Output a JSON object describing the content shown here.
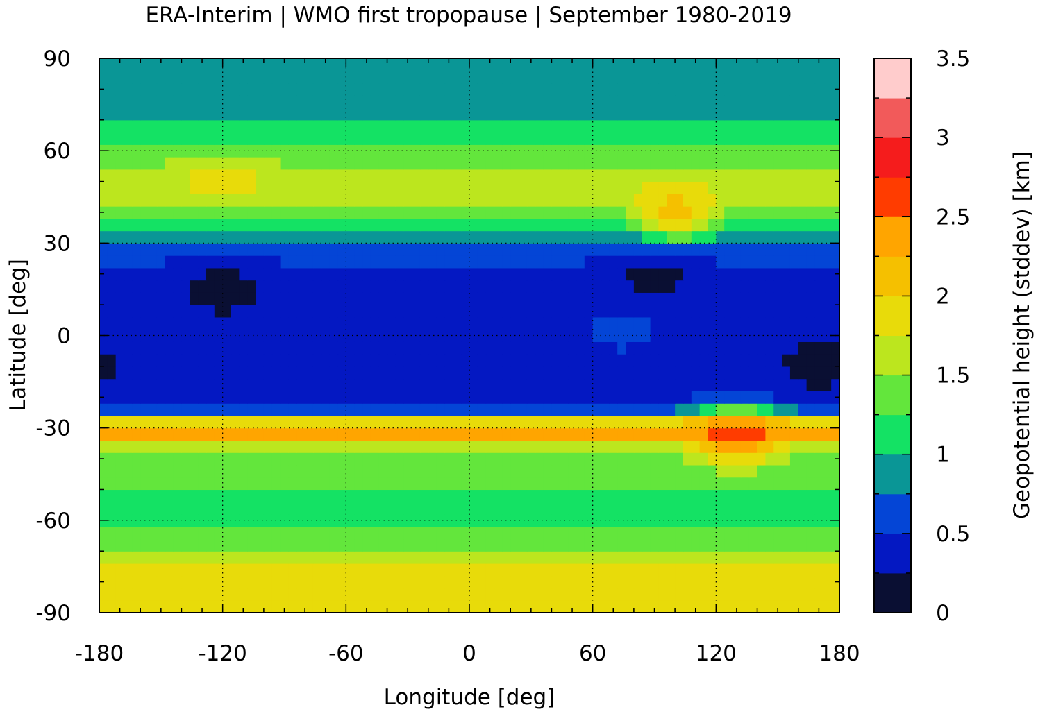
{
  "chart_data": {
    "type": "heatmap",
    "title": "ERA-Interim | WMO first tropopause | September 1980-2019",
    "xlabel": "Longitude [deg]",
    "ylabel": "Latitude [deg]",
    "colorbar_label": "Geopotential height (stddev) [km]",
    "xlim": [
      -180,
      180
    ],
    "ylim": [
      -90,
      90
    ],
    "xticks": [
      "-180",
      "-120",
      "-60",
      "0",
      "60",
      "120",
      "180"
    ],
    "yticks": [
      "90",
      "60",
      "30",
      "0",
      "-30",
      "-60",
      "-90"
    ],
    "colorbar_range": [
      0,
      3.5
    ],
    "colorbar_ticks": [
      "0",
      "0.5",
      "1",
      "1.5",
      "2",
      "2.5",
      "3",
      "3.5"
    ],
    "grid": true,
    "color_levels": [
      {
        "from": 0.0,
        "to": 0.25,
        "color": "#0a0f33"
      },
      {
        "from": 0.25,
        "to": 0.5,
        "color": "#0418c2"
      },
      {
        "from": 0.5,
        "to": 0.75,
        "color": "#0445d6"
      },
      {
        "from": 0.75,
        "to": 1.0,
        "color": "#0a9696"
      },
      {
        "from": 1.0,
        "to": 1.25,
        "color": "#14e264"
      },
      {
        "from": 1.25,
        "to": 1.5,
        "color": "#63e63c"
      },
      {
        "from": 1.5,
        "to": 1.75,
        "color": "#bce61e"
      },
      {
        "from": 1.75,
        "to": 2.0,
        "color": "#e8db0a"
      },
      {
        "from": 2.0,
        "to": 2.25,
        "color": "#f5c000"
      },
      {
        "from": 2.25,
        "to": 2.5,
        "color": "#ffa500"
      },
      {
        "from": 2.5,
        "to": 2.75,
        "color": "#ff3c00"
      },
      {
        "from": 2.75,
        "to": 3.0,
        "color": "#f51c1c"
      },
      {
        "from": 3.0,
        "to": 3.25,
        "color": "#f25a5a"
      },
      {
        "from": 3.25,
        "to": 3.5,
        "color": "#ffcccc"
      }
    ],
    "zonal_profile": [
      {
        "lat": -90,
        "value": 1.75
      },
      {
        "lat": -85,
        "value": 1.8
      },
      {
        "lat": -80,
        "value": 1.8
      },
      {
        "lat": -75,
        "value": 1.75
      },
      {
        "lat": -70,
        "value": 1.55
      },
      {
        "lat": -65,
        "value": 1.3
      },
      {
        "lat": -60,
        "value": 1.15
      },
      {
        "lat": -55,
        "value": 1.15
      },
      {
        "lat": -50,
        "value": 1.3
      },
      {
        "lat": -45,
        "value": 1.35
      },
      {
        "lat": -40,
        "value": 1.4
      },
      {
        "lat": -35,
        "value": 1.6
      },
      {
        "lat": -32,
        "value": 2.3
      },
      {
        "lat": -30,
        "value": 2.4
      },
      {
        "lat": -28,
        "value": 1.9
      },
      {
        "lat": -25,
        "value": 0.7
      },
      {
        "lat": -20,
        "value": 0.4
      },
      {
        "lat": -10,
        "value": 0.35
      },
      {
        "lat": 0,
        "value": 0.35
      },
      {
        "lat": 10,
        "value": 0.35
      },
      {
        "lat": 20,
        "value": 0.4
      },
      {
        "lat": 25,
        "value": 0.55
      },
      {
        "lat": 30,
        "value": 0.65
      },
      {
        "lat": 35,
        "value": 0.95
      },
      {
        "lat": 40,
        "value": 1.3
      },
      {
        "lat": 45,
        "value": 1.55
      },
      {
        "lat": 50,
        "value": 1.7
      },
      {
        "lat": 55,
        "value": 1.5
      },
      {
        "lat": 60,
        "value": 1.3
      },
      {
        "lat": 65,
        "value": 1.15
      },
      {
        "lat": 70,
        "value": 0.9
      },
      {
        "lat": 80,
        "value": 0.85
      },
      {
        "lat": 90,
        "value": 0.85
      }
    ],
    "regional_features": [
      {
        "note": "minimum",
        "lon": -120,
        "lat": 15,
        "value": 0.15
      },
      {
        "note": "minimum",
        "lon": 90,
        "lat": 20,
        "value": 0.15
      },
      {
        "note": "minimum",
        "lon": 170,
        "lat": -10,
        "value": 0.15
      },
      {
        "note": "maximum",
        "lon": 130,
        "lat": -32,
        "value": 2.6
      },
      {
        "note": "maximum",
        "lon": 100,
        "lat": 40,
        "value": 2.15
      },
      {
        "note": "minimum",
        "lon": 75,
        "lat": 2,
        "value": 0.6
      },
      {
        "note": "maximum",
        "lon": -120,
        "lat": 50,
        "value": 1.85
      }
    ]
  }
}
